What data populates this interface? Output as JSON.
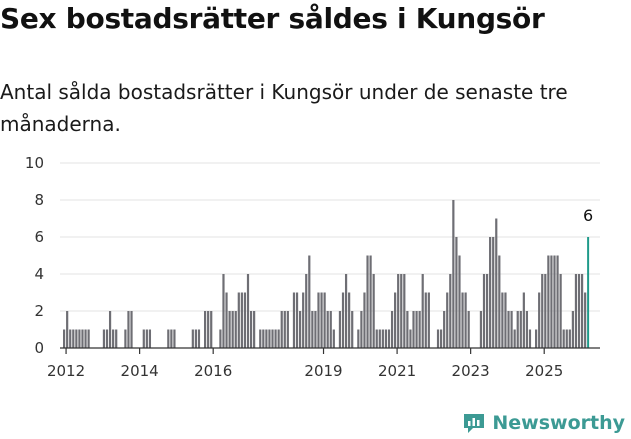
{
  "header": {
    "title": "Sex bostadsrätter såldes i Kungsör",
    "subtitle": "Antal sålda bostadsrätter i Kungsör under de senaste tre månaderna."
  },
  "brand": {
    "name": "Newsworthy",
    "color": "#3c9a94"
  },
  "chart_data": {
    "type": "bar",
    "title": "Sex bostadsrätter såldes i Kungsör",
    "subtitle": "Antal sålda bostadsrätter i Kungsör under de senaste tre månaderna.",
    "xlabel": "",
    "ylabel": "",
    "ylim": [
      0,
      10
    ],
    "yticks": [
      0,
      2,
      4,
      6,
      8,
      10
    ],
    "x_tick_labels": [
      "2012",
      "2014",
      "2016",
      "2019",
      "2021",
      "2023",
      "2025"
    ],
    "grid": true,
    "bar_color": "#6e6e74",
    "highlight_color": "#1f9a8a",
    "annotation": "6",
    "start_month": "2011-12",
    "values": [
      1,
      2,
      1,
      1,
      1,
      1,
      1,
      1,
      1,
      0,
      0,
      0,
      0,
      1,
      1,
      2,
      1,
      1,
      0,
      0,
      1,
      2,
      2,
      0,
      0,
      0,
      1,
      1,
      1,
      0,
      0,
      0,
      0,
      0,
      1,
      1,
      1,
      0,
      0,
      0,
      0,
      0,
      1,
      1,
      1,
      0,
      2,
      2,
      2,
      0,
      0,
      1,
      4,
      3,
      2,
      2,
      2,
      3,
      3,
      3,
      4,
      2,
      2,
      0,
      1,
      1,
      1,
      1,
      1,
      1,
      1,
      2,
      2,
      2,
      0,
      3,
      3,
      2,
      3,
      4,
      5,
      2,
      2,
      3,
      3,
      3,
      2,
      2,
      1,
      0,
      2,
      3,
      4,
      3,
      2,
      0,
      1,
      2,
      3,
      5,
      5,
      4,
      1,
      1,
      1,
      1,
      1,
      2,
      3,
      4,
      4,
      4,
      2,
      1,
      2,
      2,
      2,
      4,
      3,
      3,
      0,
      0,
      1,
      1,
      2,
      3,
      4,
      8,
      6,
      5,
      3,
      3,
      2,
      0,
      0,
      0,
      2,
      4,
      4,
      6,
      6,
      7,
      5,
      3,
      3,
      2,
      2,
      1,
      2,
      2,
      3,
      2,
      1,
      0,
      1,
      3,
      4,
      4,
      5,
      5,
      5,
      5,
      4,
      1,
      1,
      1,
      2,
      4,
      4,
      4,
      3,
      6
    ]
  }
}
